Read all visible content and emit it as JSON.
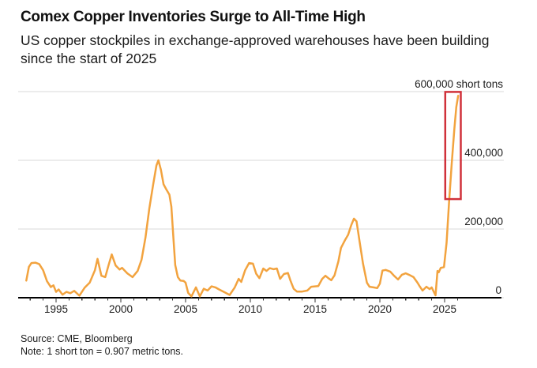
{
  "header": {
    "title": "Comex Copper Inventories Surge to All-Time High",
    "subtitle": "US copper stockpiles in exchange-approved warehouses have been building since the start of 2025"
  },
  "footer": {
    "source": "Source: CME, Bloomberg",
    "note": "Note: 1 short ton = 0.907 metric tons."
  },
  "colors": {
    "line": "#F2A33F",
    "highlight_box": "#D0313A",
    "gridline": "#D8D8D8",
    "axis": "#000000",
    "tick": "#333333",
    "label": "#1c1c1c"
  },
  "chart_data": {
    "type": "line",
    "title": "Comex Copper Inventories Surge to All-Time High",
    "subtitle": "US copper stockpiles in exchange-approved warehouses have been building since the start of 2025",
    "unit": "short tons",
    "ylim": [
      0,
      600000
    ],
    "x_range": [
      1992.7,
      2026.05
    ],
    "grid": "horizontal",
    "legend": "none",
    "y_ticks": [
      {
        "value": 600000,
        "label": "600,000 short tons"
      },
      {
        "value": 400000,
        "label": "400,000"
      },
      {
        "value": 200000,
        "label": "200,000"
      },
      {
        "value": 0,
        "label": "0"
      }
    ],
    "x_major_ticks": [
      {
        "year": 1995,
        "label": "1995"
      },
      {
        "year": 2000,
        "label": "2000"
      },
      {
        "year": 2005,
        "label": "2005"
      },
      {
        "year": 2010,
        "label": "2010"
      },
      {
        "year": 2015,
        "label": "2015"
      },
      {
        "year": 2020,
        "label": "2020"
      },
      {
        "year": 2025,
        "label": "2025"
      }
    ],
    "x_minor_tick_years": {
      "start": 1993,
      "end": 2026
    },
    "highlight_box": {
      "year_start": 2025.05,
      "year_end": 2026.25,
      "value_bottom": 287000,
      "value_top": 599000
    },
    "series": [
      {
        "name": "Comex copper inventories (short tons)",
        "points": [
          [
            1992.7,
            50000
          ],
          [
            1992.9,
            90000
          ],
          [
            1993.1,
            101000
          ],
          [
            1993.4,
            102000
          ],
          [
            1993.7,
            98000
          ],
          [
            1994.0,
            80000
          ],
          [
            1994.3,
            48000
          ],
          [
            1994.6,
            31000
          ],
          [
            1994.8,
            36000
          ],
          [
            1995.0,
            17000
          ],
          [
            1995.2,
            24000
          ],
          [
            1995.5,
            9000
          ],
          [
            1995.8,
            17000
          ],
          [
            1996.1,
            13000
          ],
          [
            1996.4,
            20000
          ],
          [
            1996.8,
            6000
          ],
          [
            1997.2,
            29000
          ],
          [
            1997.6,
            44000
          ],
          [
            1998.0,
            80000
          ],
          [
            1998.2,
            113000
          ],
          [
            1998.5,
            64000
          ],
          [
            1998.8,
            60000
          ],
          [
            1999.05,
            94000
          ],
          [
            1999.3,
            126000
          ],
          [
            1999.6,
            94000
          ],
          [
            1999.9,
            82000
          ],
          [
            2000.1,
            87000
          ],
          [
            2000.5,
            71000
          ],
          [
            2000.9,
            60000
          ],
          [
            2001.3,
            78000
          ],
          [
            2001.6,
            110000
          ],
          [
            2001.9,
            175000
          ],
          [
            2002.2,
            260000
          ],
          [
            2002.5,
            330000
          ],
          [
            2002.75,
            385000
          ],
          [
            2002.9,
            400000
          ],
          [
            2003.1,
            372000
          ],
          [
            2003.3,
            330000
          ],
          [
            2003.5,
            316000
          ],
          [
            2003.75,
            300000
          ],
          [
            2003.9,
            265000
          ],
          [
            2004.05,
            180000
          ],
          [
            2004.2,
            95000
          ],
          [
            2004.4,
            60000
          ],
          [
            2004.6,
            50000
          ],
          [
            2004.85,
            49000
          ],
          [
            2005.0,
            44000
          ],
          [
            2005.2,
            14000
          ],
          [
            2005.45,
            4000
          ],
          [
            2005.8,
            30000
          ],
          [
            2006.1,
            4000
          ],
          [
            2006.4,
            26000
          ],
          [
            2006.7,
            21000
          ],
          [
            2007.0,
            33000
          ],
          [
            2007.3,
            30000
          ],
          [
            2007.6,
            24000
          ],
          [
            2008.0,
            16000
          ],
          [
            2008.4,
            8000
          ],
          [
            2008.8,
            30000
          ],
          [
            2009.1,
            55000
          ],
          [
            2009.3,
            46000
          ],
          [
            2009.6,
            80000
          ],
          [
            2009.9,
            101000
          ],
          [
            2010.2,
            99000
          ],
          [
            2010.45,
            70000
          ],
          [
            2010.7,
            57000
          ],
          [
            2011.0,
            85000
          ],
          [
            2011.25,
            78000
          ],
          [
            2011.5,
            86000
          ],
          [
            2011.8,
            83000
          ],
          [
            2012.05,
            85000
          ],
          [
            2012.3,
            55000
          ],
          [
            2012.6,
            69000
          ],
          [
            2012.9,
            72000
          ],
          [
            2013.1,
            50000
          ],
          [
            2013.35,
            26000
          ],
          [
            2013.6,
            18000
          ],
          [
            2014.0,
            18000
          ],
          [
            2014.4,
            21000
          ],
          [
            2014.7,
            32000
          ],
          [
            2015.0,
            33000
          ],
          [
            2015.25,
            34000
          ],
          [
            2015.55,
            55000
          ],
          [
            2015.8,
            64000
          ],
          [
            2016.05,
            56000
          ],
          [
            2016.25,
            51000
          ],
          [
            2016.5,
            65000
          ],
          [
            2016.8,
            106000
          ],
          [
            2017.0,
            145000
          ],
          [
            2017.3,
            167000
          ],
          [
            2017.55,
            183000
          ],
          [
            2017.8,
            212000
          ],
          [
            2018.0,
            230000
          ],
          [
            2018.2,
            222000
          ],
          [
            2018.45,
            160000
          ],
          [
            2018.7,
            99000
          ],
          [
            2019.0,
            44000
          ],
          [
            2019.2,
            32000
          ],
          [
            2019.5,
            30000
          ],
          [
            2019.8,
            28000
          ],
          [
            2020.0,
            41000
          ],
          [
            2020.2,
            79000
          ],
          [
            2020.45,
            81000
          ],
          [
            2020.8,
            76000
          ],
          [
            2021.1,
            64000
          ],
          [
            2021.4,
            53000
          ],
          [
            2021.7,
            67000
          ],
          [
            2022.0,
            71000
          ],
          [
            2022.3,
            66000
          ],
          [
            2022.6,
            60000
          ],
          [
            2022.9,
            44000
          ],
          [
            2023.1,
            32000
          ],
          [
            2023.3,
            21000
          ],
          [
            2023.6,
            32000
          ],
          [
            2023.85,
            25000
          ],
          [
            2024.0,
            30000
          ],
          [
            2024.3,
            7000
          ],
          [
            2024.45,
            78000
          ],
          [
            2024.55,
            74000
          ],
          [
            2024.7,
            87000
          ],
          [
            2024.95,
            89000
          ],
          [
            2025.15,
            160000
          ],
          [
            2025.35,
            280000
          ],
          [
            2025.55,
            390000
          ],
          [
            2025.75,
            490000
          ],
          [
            2025.9,
            555000
          ],
          [
            2026.05,
            588000
          ]
        ]
      }
    ]
  }
}
